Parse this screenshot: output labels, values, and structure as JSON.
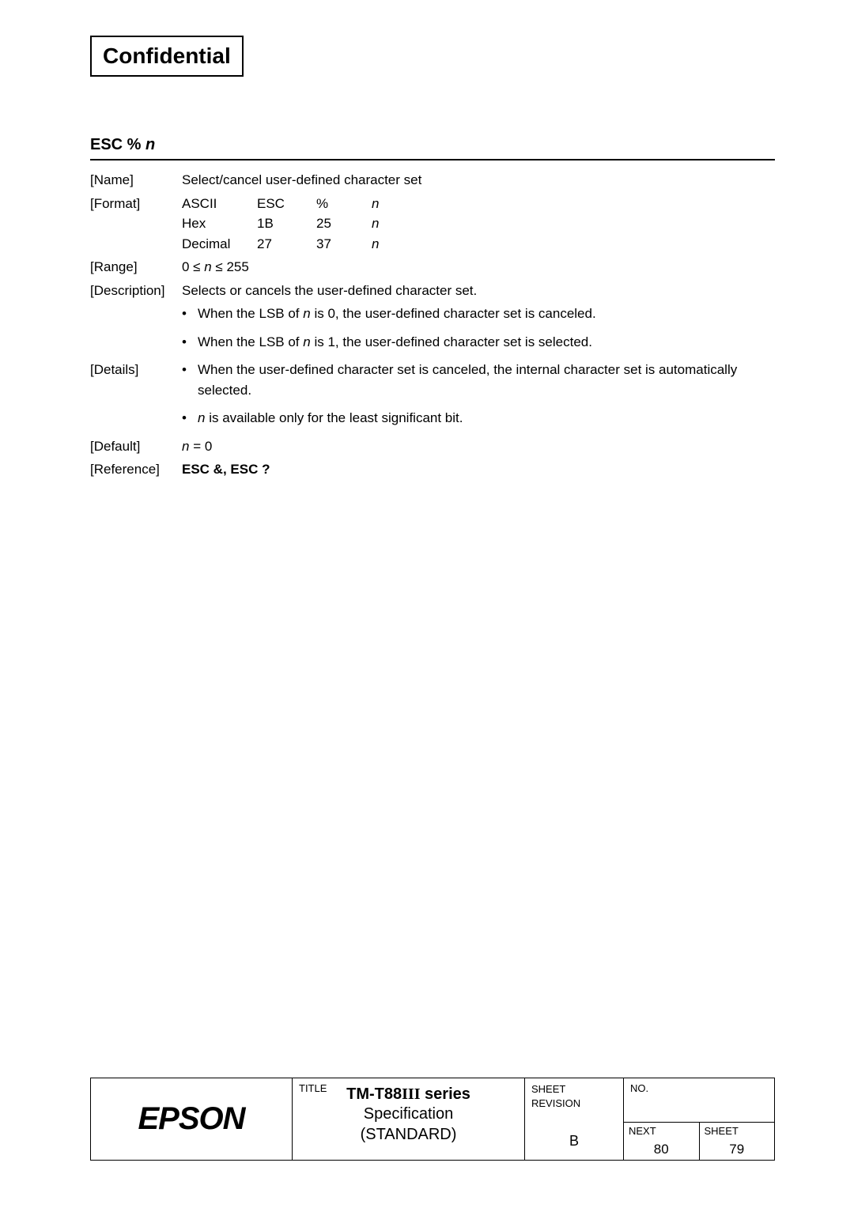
{
  "header": {
    "confidential": "Confidential"
  },
  "command": {
    "title_prefix": "ESC % ",
    "title_param": "n"
  },
  "sections": {
    "name": {
      "label": "[Name]",
      "text": "Select/cancel user-defined character set"
    },
    "format": {
      "label": "[Format]",
      "rows": [
        {
          "c1": "ASCII",
          "c2": "ESC",
          "c3": "%",
          "c4": "n"
        },
        {
          "c1": "Hex",
          "c2": "1B",
          "c3": "25",
          "c4": "n"
        },
        {
          "c1": "Decimal",
          "c2": "27",
          "c3": "37",
          "c4": "n"
        }
      ]
    },
    "range": {
      "label": "[Range]",
      "prefix": "0 ≤ ",
      "var": "n",
      "suffix": " ≤ 255"
    },
    "description": {
      "label": "[Description]",
      "text": "Selects or cancels the user-defined character set.",
      "bullets": [
        {
          "pre": "When the LSB of ",
          "var": "n",
          "post": " is 0, the user-defined character set is canceled."
        },
        {
          "pre": "When the LSB of ",
          "var": "n",
          "post": " is 1, the user-defined character set is selected."
        }
      ]
    },
    "details": {
      "label": "[Details]",
      "bullets": [
        {
          "pre": "When the user-defined character set is canceled, the internal character set is automatically selected.",
          "var": "",
          "post": ""
        },
        {
          "pre": "",
          "var": "n",
          "post": " is available only for the least significant bit."
        }
      ]
    },
    "default": {
      "label": "[Default]",
      "var": "n",
      "text": " = 0"
    },
    "reference": {
      "label": "[Reference]",
      "text": "ESC &, ESC ?"
    }
  },
  "footer": {
    "logo": "EPSON",
    "title_label": "TITLE",
    "title_main_pre": "TM-T88",
    "title_main_roman": "III",
    "title_main_post": " series",
    "title_sub1": "Specification",
    "title_sub2": "(STANDARD)",
    "sheet_label1": "SHEET",
    "sheet_label2": "REVISION",
    "revision": "B",
    "no_label": "NO.",
    "next_label": "NEXT",
    "next_val": "80",
    "sheet_label": "SHEET",
    "sheet_val": "79"
  }
}
